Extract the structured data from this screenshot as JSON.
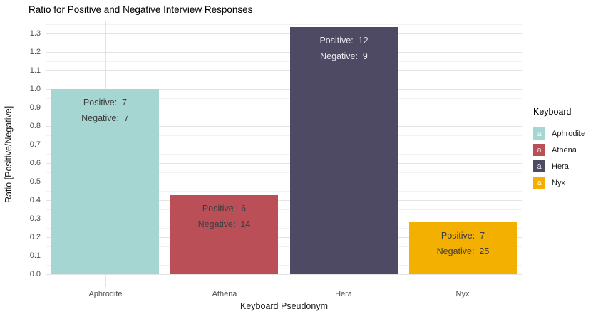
{
  "chart_data": {
    "type": "bar",
    "title": "Ratio for Positive and Negative Interview Responses",
    "xlabel": "Keyboard Pseudonym",
    "ylabel": "Ratio [Positive/Negative]",
    "categories": [
      "Aphrodite",
      "Athena",
      "Hera",
      "Nyx"
    ],
    "positive_counts": [
      7,
      6,
      12,
      7
    ],
    "negative_counts": [
      7,
      14,
      9,
      25
    ],
    "values": [
      1.0,
      0.4286,
      1.3333,
      0.28
    ],
    "bar_colors": [
      "#a5d6d2",
      "#ba4f58",
      "#4f4a63",
      "#f4b000"
    ],
    "bar_label_lines": [
      [
        "Positive:  7",
        "Negative:  7"
      ],
      [
        "Positive:  6",
        "Negative:  14"
      ],
      [
        "Positive:  12",
        "Negative:  9"
      ],
      [
        "Positive:  7",
        "Negative:  25"
      ]
    ],
    "bar_label_colors": [
      "#3d3d3d",
      "#3d3d3d",
      "#e9e8ee",
      "#3d3d3d"
    ],
    "ylim": [
      -0.067,
      1.365
    ],
    "yticks": [
      "0.0",
      "0.1",
      "0.2",
      "0.3",
      "0.4",
      "0.5",
      "0.6",
      "0.7",
      "0.8",
      "0.9",
      "1.0",
      "1.1",
      "1.2",
      "1.3"
    ],
    "minor_grid_step": 0.05,
    "grid": true,
    "legend": {
      "title": "Keyboard",
      "position": "right",
      "key_glyph": "a",
      "entries": [
        {
          "label": "Aphrodite",
          "color": "#a5d6d2"
        },
        {
          "label": "Athena",
          "color": "#ba4f58"
        },
        {
          "label": "Hera",
          "color": "#4f4a63"
        },
        {
          "label": "Nyx",
          "color": "#f4b000"
        }
      ]
    }
  }
}
